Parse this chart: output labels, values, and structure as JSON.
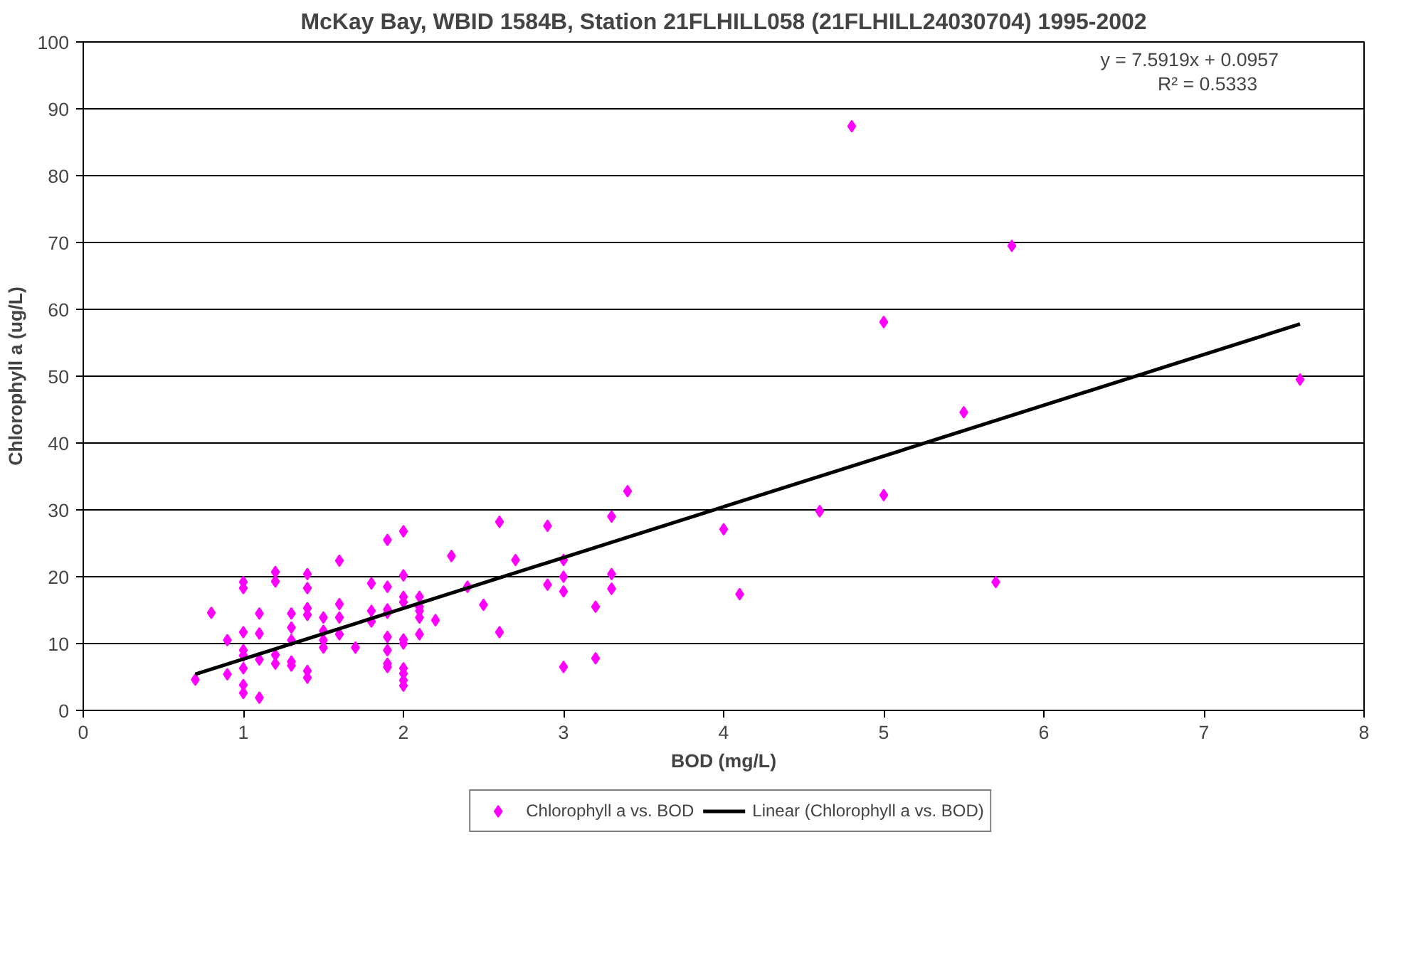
{
  "chart_data": {
    "type": "scatter",
    "title": "McKay Bay, WBID 1584B, Station 21FLHILL058 (21FLHILL24030704) 1995-2002",
    "xlabel": "BOD (mg/L)",
    "ylabel": "Chlorophyll a (ug/L)",
    "xlim": [
      0,
      8
    ],
    "xticks": [
      0,
      1,
      2,
      3,
      4,
      5,
      6,
      7,
      8
    ],
    "ylim": [
      0,
      100
    ],
    "yticks": [
      0,
      10,
      20,
      30,
      40,
      50,
      60,
      70,
      80,
      90,
      100
    ],
    "grid": "y",
    "legend": "bottom",
    "annotations": [
      "y = 7.5919x + 0.0957",
      "R² = 0.5333"
    ],
    "series": [
      {
        "name": "Chlorophyll a vs. BOD",
        "marker": "diamond",
        "color": "#ff00ff",
        "x": [
          0.7,
          0.8,
          0.9,
          0.9,
          1.0,
          1.0,
          1.0,
          1.0,
          1.0,
          1.0,
          1.0,
          1.0,
          1.1,
          1.1,
          1.1,
          1.1,
          1.2,
          1.2,
          1.2,
          1.2,
          1.3,
          1.3,
          1.3,
          1.3,
          1.3,
          1.4,
          1.4,
          1.4,
          1.4,
          1.4,
          1.4,
          1.5,
          1.5,
          1.5,
          1.5,
          1.6,
          1.6,
          1.6,
          1.6,
          1.7,
          1.8,
          1.8,
          1.8,
          1.9,
          1.9,
          1.9,
          1.9,
          1.9,
          1.9,
          1.9,
          1.9,
          2.0,
          2.0,
          2.0,
          2.0,
          2.0,
          2.0,
          2.0,
          2.0,
          2.0,
          2.0,
          2.1,
          2.1,
          2.1,
          2.1,
          2.1,
          2.2,
          2.3,
          2.4,
          2.5,
          2.6,
          2.6,
          2.7,
          2.9,
          2.9,
          3.0,
          3.0,
          3.0,
          3.0,
          3.2,
          3.2,
          3.3,
          3.3,
          3.3,
          3.4,
          4.0,
          4.1,
          4.6,
          4.8,
          5.0,
          5.0,
          5.5,
          5.7,
          5.8,
          7.6
        ],
        "values": [
          4.6,
          14.6,
          10.5,
          5.4,
          19.2,
          18.3,
          11.7,
          9.0,
          8.2,
          6.3,
          3.8,
          2.6,
          14.5,
          11.5,
          7.6,
          1.9,
          20.7,
          19.3,
          8.3,
          7.0,
          14.5,
          12.4,
          10.5,
          7.3,
          6.7,
          20.4,
          18.3,
          15.3,
          14.3,
          5.9,
          4.9,
          13.9,
          11.9,
          10.5,
          9.4,
          22.4,
          15.9,
          13.9,
          11.4,
          9.4,
          19.0,
          14.9,
          13.3,
          25.5,
          18.5,
          15.1,
          14.6,
          11.0,
          9.0,
          7.0,
          6.5,
          26.8,
          20.2,
          17.0,
          16.2,
          10.6,
          10.0,
          6.3,
          5.5,
          4.5,
          3.7,
          17.0,
          15.5,
          14.9,
          13.9,
          11.4,
          13.5,
          23.1,
          18.5,
          15.8,
          28.2,
          11.7,
          22.5,
          27.6,
          18.8,
          22.5,
          20.0,
          17.8,
          6.5,
          15.5,
          7.8,
          29.0,
          20.4,
          18.2,
          32.8,
          27.1,
          17.4,
          29.8,
          87.4,
          58.1,
          32.2,
          44.6,
          19.2,
          69.5,
          49.5
        ]
      },
      {
        "name": "Linear (Chlorophyll a vs. BOD)",
        "type": "line",
        "color": "#000000",
        "marker": "none",
        "line_style": "solid",
        "x": [
          0.7,
          7.6
        ],
        "values": [
          5.4,
          57.8
        ]
      }
    ]
  }
}
